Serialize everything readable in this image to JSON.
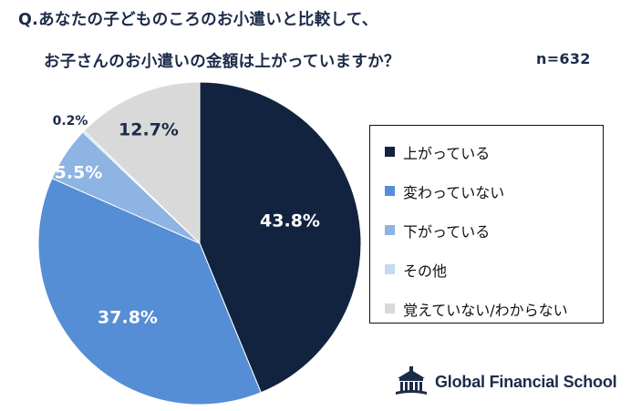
{
  "title_line1": "Q.あなたの子どものころのお小遣いと比較して、",
  "title_line2": "お子さんのお小遣いの金額は上がっていますか？",
  "sample_size": "n=632",
  "chart_data": {
    "type": "pie",
    "slices": [
      {
        "label": "上がっている",
        "value": 43.8,
        "value_label": "43.8%",
        "color": "#12233f",
        "label_color": "#ffffff"
      },
      {
        "label": "変わっていない",
        "value": 37.8,
        "value_label": "37.8%",
        "color": "#558ed5",
        "label_color": "#ffffff"
      },
      {
        "label": "下がっている",
        "value": 5.5,
        "value_label": "5.5%",
        "color": "#8db4e2",
        "label_color": "#ffffff"
      },
      {
        "label": "その他",
        "value": 0.2,
        "value_label": "0.2%",
        "color": "#c6d9f1",
        "label_color": "#1c2b4a"
      },
      {
        "label": "覚えていない/わからない",
        "value": 12.7,
        "value_label": "12.7%",
        "color": "#d9d9d9",
        "label_color": "#1c2b4a"
      }
    ],
    "legend_position": "right"
  },
  "logo": {
    "text": "Global Financial School",
    "icon": "school-building-icon"
  }
}
